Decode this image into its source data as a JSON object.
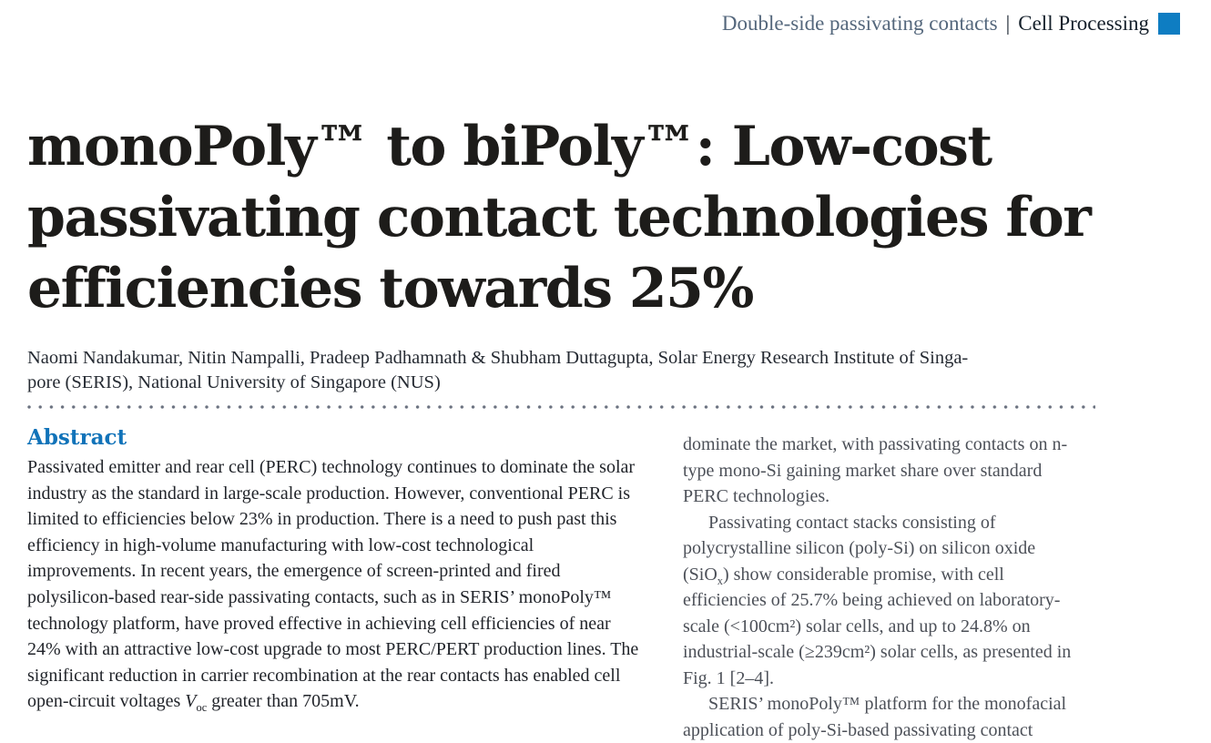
{
  "header": {
    "category": "Double-side passivating contacts",
    "divider": "|",
    "section": "Cell Processing"
  },
  "article": {
    "title_lines": [
      "monoPoly™ to biPoly™: Low-cost",
      "passivating contact technologies for",
      "efficiencies towards 25%"
    ],
    "author_lines": [
      "Naomi Nandakumar, Nitin Nampalli, Pradeep Padhamnath & Shubham Duttagupta, Solar Energy Research Institute of Singa-",
      "pore (SERIS), National University of Singapore (NUS)"
    ]
  },
  "abstract": {
    "heading": "Abstract",
    "body_before_voc": "Passivated emitter and rear cell (PERC) technology continues to dominate the solar industry as the standard in large-scale production. However, conventional PERC is limited to efficiencies below 23% in production. There is a need to push past this efficiency in high-volume manufacturing with low-cost technological improvements. In recent years, the emergence of screen-printed and fired polysilicon-based rear-side passivating contacts, such as in SERIS’ monoPoly™ technology platform, have proved effective in achieving cell efficiencies of near 24% with an attractive low-cost upgrade to most PERC/PERT production lines. The significant reduction in carrier recombination at the rear contacts has enabled cell open-circuit voltages ",
    "voc_symbol": "V",
    "voc_subscript": "oc",
    "body_after_voc": " greater than 705mV."
  },
  "column_right": {
    "para1": "dominate the market, with passivating contacts on n-type mono-Si gaining market share over standard PERC technologies.",
    "para2_before_sub": "Passivating contact stacks consisting of polycrystalline silicon (poly-Si) on silicon oxide (SiO",
    "para2_sub": "x",
    "para2_after_sub": ") show considerable promise, with cell efficiencies of 25.7% being achieved on laboratory-scale (<100cm²) solar cells, and up to 24.8% on industrial-scale (≥239cm²) solar cells, as presented in Fig. 1 [2–4].",
    "para3": "SERIS’ monoPoly™ platform for the monofacial application of poly-Si-based passivating contact"
  },
  "colors": {
    "accent_blue": "#0e7dc2",
    "heading_blue": "#1173b9",
    "header_category_gray_blue": "#54677c",
    "divider_dot_gray": "#6b7280"
  }
}
